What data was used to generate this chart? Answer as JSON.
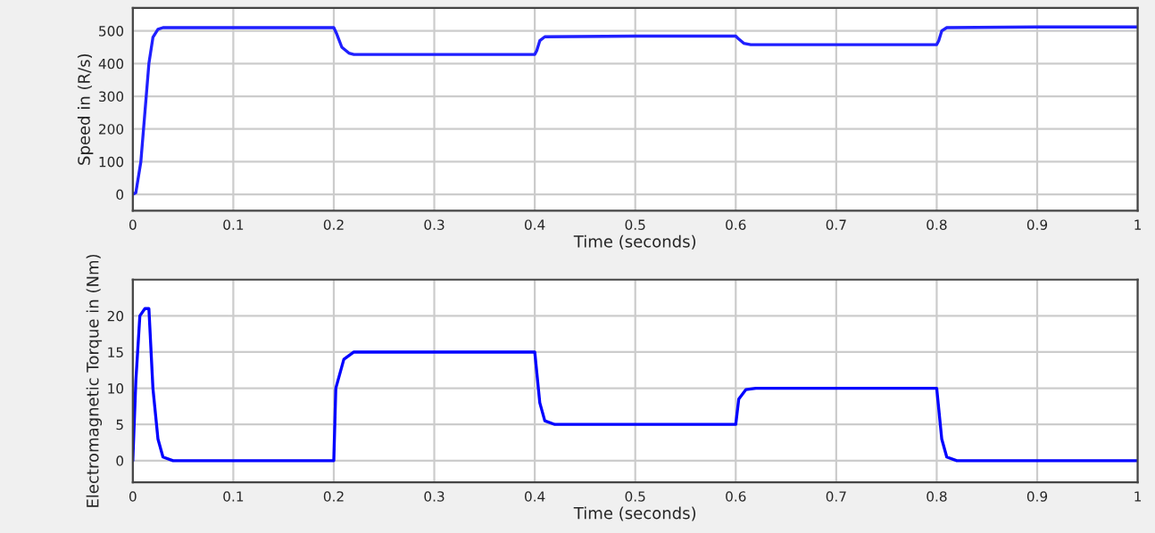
{
  "chart_data": [
    {
      "type": "line",
      "xlabel": "Time (seconds)",
      "ylabel": "Speed in (R/s)",
      "xlim": [
        0,
        1
      ],
      "ylim": [
        -50,
        570
      ],
      "xticks": [
        0,
        0.1,
        0.2,
        0.3,
        0.4,
        0.5,
        0.6,
        0.7,
        0.8,
        0.9,
        1
      ],
      "yticks": [
        0,
        100,
        200,
        300,
        400,
        500
      ],
      "grid": true,
      "series": [
        {
          "color": "#1f1fff",
          "x": [
            0,
            0.003,
            0.008,
            0.012,
            0.016,
            0.02,
            0.025,
            0.03,
            0.1,
            0.2,
            0.203,
            0.208,
            0.215,
            0.22,
            0.3,
            0.4,
            0.402,
            0.405,
            0.41,
            0.5,
            0.6,
            0.603,
            0.608,
            0.615,
            0.7,
            0.8,
            0.802,
            0.805,
            0.81,
            0.9,
            1
          ],
          "values": [
            0,
            5,
            100,
            250,
            400,
            480,
            505,
            510,
            510,
            510,
            490,
            450,
            432,
            428,
            428,
            428,
            440,
            470,
            482,
            484,
            484,
            475,
            462,
            458,
            458,
            458,
            470,
            500,
            510,
            512,
            512
          ]
        }
      ]
    },
    {
      "type": "line",
      "xlabel": "Time (seconds)",
      "ylabel": "Electromagnetic Torque in (Nm)",
      "xlim": [
        0,
        1
      ],
      "ylim": [
        -3,
        25
      ],
      "xticks": [
        0,
        0.1,
        0.2,
        0.3,
        0.4,
        0.5,
        0.6,
        0.7,
        0.8,
        0.9,
        1
      ],
      "yticks": [
        0,
        5,
        10,
        15,
        20
      ],
      "grid": true,
      "series": [
        {
          "color": "#0000ff",
          "x": [
            0,
            0.003,
            0.007,
            0.012,
            0.016,
            0.02,
            0.025,
            0.03,
            0.04,
            0.2,
            0.202,
            0.21,
            0.22,
            0.4,
            0.405,
            0.41,
            0.42,
            0.6,
            0.603,
            0.61,
            0.62,
            0.8,
            0.805,
            0.81,
            0.82,
            1
          ],
          "values": [
            0,
            11,
            20,
            21,
            21,
            10,
            3,
            0.5,
            0,
            0,
            10,
            14,
            15,
            15,
            8,
            5.5,
            5,
            5,
            8.5,
            9.8,
            10,
            10,
            3,
            0.5,
            0,
            0
          ]
        }
      ]
    }
  ]
}
